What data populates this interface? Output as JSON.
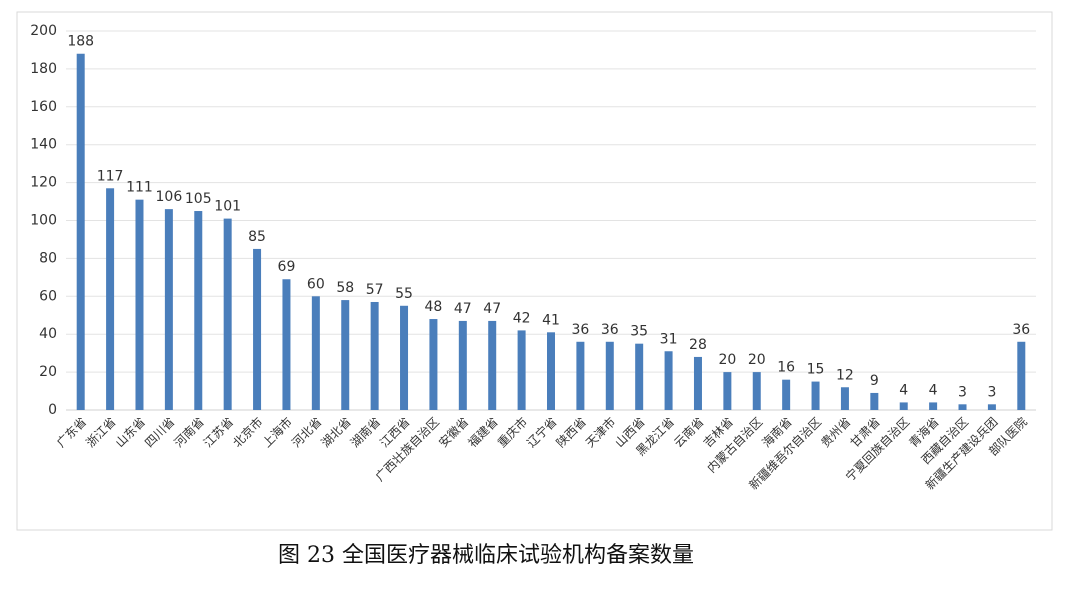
{
  "chart_data": {
    "type": "bar",
    "caption": "图 23  全国医疗器械临床试验机构备案数量",
    "categories": [
      "广东省",
      "浙江省",
      "山东省",
      "四川省",
      "河南省",
      "江苏省",
      "北京市",
      "上海市",
      "河北省",
      "湖北省",
      "湖南省",
      "江西省",
      "广西壮族自治区",
      "安徽省",
      "福建省",
      "重庆市",
      "辽宁省",
      "陕西省",
      "天津市",
      "山西省",
      "黑龙江省",
      "云南省",
      "吉林省",
      "内蒙古自治区",
      "海南省",
      "新疆维吾尔自治区",
      "贵州省",
      "甘肃省",
      "宁夏回族自治区",
      "青海省",
      "西藏自治区",
      "新疆生产建设兵团",
      "部队医院"
    ],
    "values": [
      188,
      117,
      111,
      106,
      105,
      101,
      85,
      69,
      60,
      58,
      57,
      55,
      48,
      47,
      47,
      42,
      41,
      36,
      36,
      35,
      31,
      28,
      20,
      20,
      16,
      15,
      12,
      9,
      4,
      4,
      3,
      3,
      36
    ],
    "color": "#4a7ebb",
    "ylim": [
      0,
      200
    ],
    "yticks": [
      0,
      20,
      40,
      60,
      80,
      100,
      120,
      140,
      160,
      180,
      200
    ],
    "grid": true
  }
}
